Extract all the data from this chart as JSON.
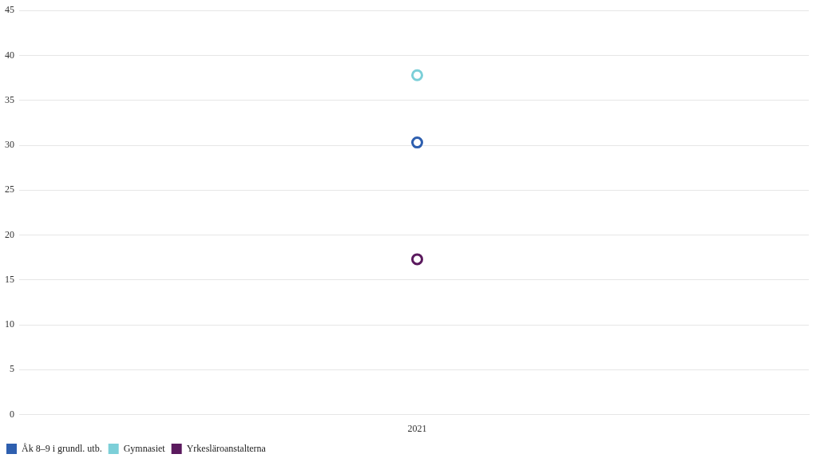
{
  "chart_data": {
    "type": "line",
    "categories": [
      "2021"
    ],
    "series": [
      {
        "name": "Åk 8–9 i grundl. utb.",
        "color": "#2e5faf",
        "values": [
          30.3
        ]
      },
      {
        "name": "Gymnasiet",
        "color": "#7ccfd8",
        "values": [
          37.8
        ]
      },
      {
        "name": "Yrkesläroanstalterna",
        "color": "#5b1a5e",
        "values": [
          17.3
        ]
      }
    ],
    "ylim": [
      0,
      45
    ],
    "yticks": [
      0,
      5,
      10,
      15,
      20,
      25,
      30,
      35,
      40,
      45
    ],
    "grid": "y",
    "legend": "bottom left",
    "marker": "circle"
  }
}
